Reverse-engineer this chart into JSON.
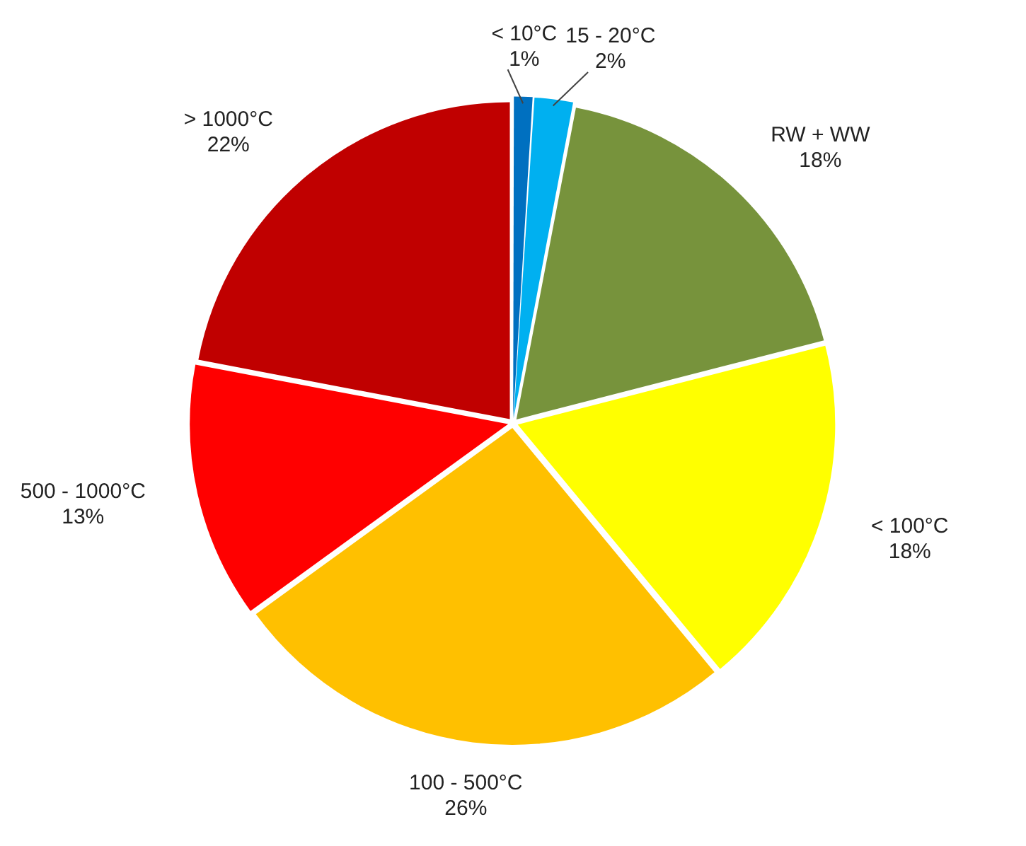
{
  "chart_data": {
    "type": "pie",
    "categories": [
      "< 10°C",
      "15 - 20°C",
      "RW + WW",
      "< 100°C",
      "100 - 500°C",
      "500 - 1000°C",
      "> 1000°C"
    ],
    "values": [
      1,
      2,
      18,
      18,
      26,
      13,
      22
    ],
    "colors": [
      "#0070c0",
      "#00b0f0",
      "#77933c",
      "#ffff00",
      "#ffc000",
      "#ff0000",
      "#c00000"
    ],
    "value_labels": [
      "1%",
      "2%",
      "18%",
      "18%",
      "26%",
      "13%",
      "22%"
    ],
    "legend": false
  }
}
